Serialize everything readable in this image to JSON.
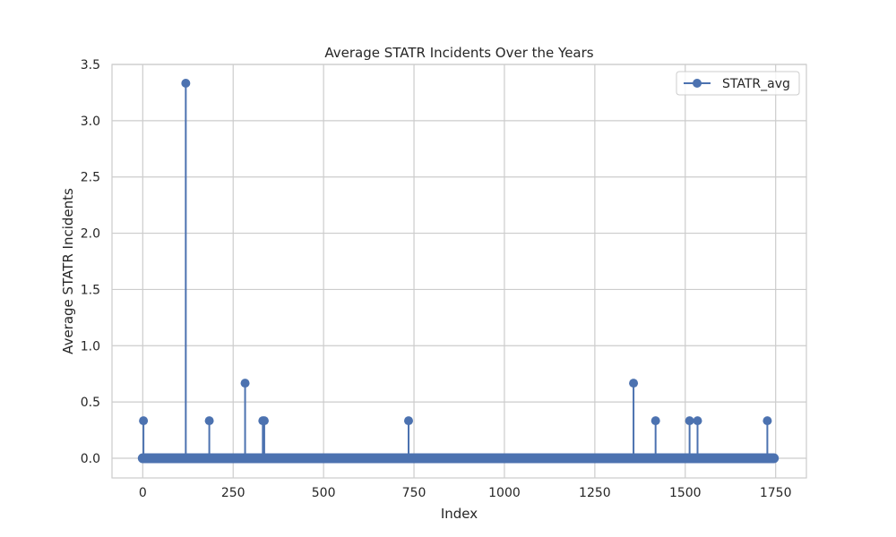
{
  "chart_data": {
    "type": "line",
    "title": "Average STATR Incidents Over the Years",
    "xlabel": "Index",
    "ylabel": "Average STATR Incidents",
    "xlim": [
      -85,
      1835
    ],
    "ylim": [
      -0.175,
      3.5
    ],
    "xticks": [
      0,
      250,
      500,
      750,
      1000,
      1250,
      1500,
      1750
    ],
    "yticks": [
      0.0,
      0.5,
      1.0,
      1.5,
      2.0,
      2.5,
      3.0,
      3.5
    ],
    "ytick_labels": [
      "0.0",
      "0.5",
      "1.0",
      "1.5",
      "2.0",
      "2.5",
      "3.0",
      "3.5"
    ],
    "grid": true,
    "legend_position": "top-right",
    "x_range": [
      0,
      1745
    ],
    "baseline_value": 0.0,
    "series": [
      {
        "name": "STATR_avg",
        "color": "#4c72b0",
        "marker": "circle",
        "nonzero_points": [
          {
            "x": 2,
            "y": 0.333
          },
          {
            "x": 119,
            "y": 3.333
          },
          {
            "x": 184,
            "y": 0.333
          },
          {
            "x": 283,
            "y": 0.667
          },
          {
            "x": 332,
            "y": 0.333
          },
          {
            "x": 336,
            "y": 0.333
          },
          {
            "x": 735,
            "y": 0.333
          },
          {
            "x": 1357,
            "y": 0.667
          },
          {
            "x": 1418,
            "y": 0.333
          },
          {
            "x": 1512,
            "y": 0.333
          },
          {
            "x": 1534,
            "y": 0.333
          },
          {
            "x": 1727,
            "y": 0.333
          }
        ]
      }
    ]
  }
}
